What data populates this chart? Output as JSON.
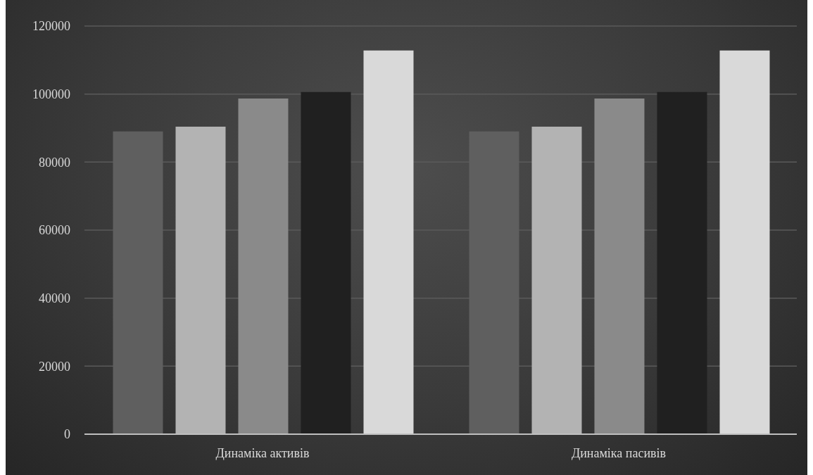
{
  "chart_data": {
    "type": "bar",
    "categories": [
      "Динаміка активів",
      "Динаміка пасивів"
    ],
    "series": [
      {
        "color": "#5f5f5f",
        "values": [
          89000,
          89000
        ]
      },
      {
        "color": "#b3b3b3",
        "values": [
          90400,
          90400
        ]
      },
      {
        "color": "#8a8a8a",
        "values": [
          98700,
          98700
        ]
      },
      {
        "color": "#202020",
        "values": [
          100600,
          100600
        ]
      },
      {
        "color": "#d9d9d9",
        "values": [
          112800,
          112800
        ]
      }
    ],
    "ylim": [
      0,
      120000
    ],
    "yticks": [
      0,
      20000,
      40000,
      60000,
      80000,
      100000,
      120000
    ],
    "grid": "y",
    "legend": false
  }
}
